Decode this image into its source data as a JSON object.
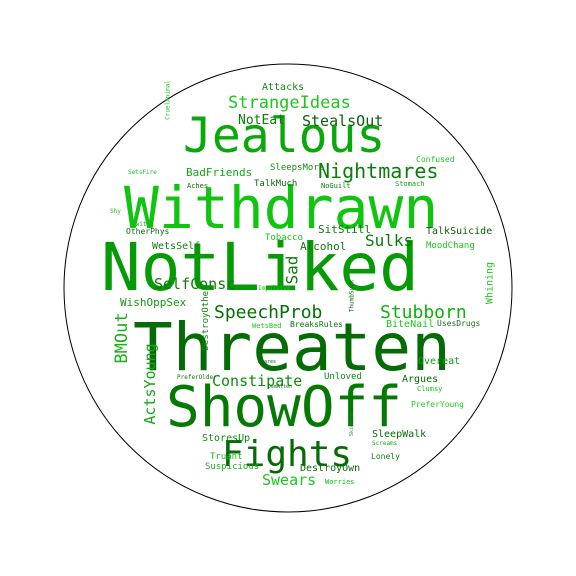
{
  "words": [
    {
      "text": "NotLiked",
      "color": "#079a07"
    },
    {
      "text": "Threaten",
      "color": "#056b05"
    },
    {
      "text": "Withdrawn",
      "color": "#10c410"
    },
    {
      "text": "ShowOff",
      "color": "#047a04"
    },
    {
      "text": "Jealous",
      "color": "#0aa80a"
    },
    {
      "text": "Fights",
      "color": "#066a06"
    },
    {
      "text": "Nightmares",
      "color": "#0a7e0a"
    },
    {
      "text": "StrangeIdeas",
      "color": "#19c819"
    },
    {
      "text": "SpeechProb",
      "color": "#067006"
    },
    {
      "text": "Stubborn",
      "color": "#10b010"
    },
    {
      "text": "StealsOut",
      "color": "#0a600a"
    },
    {
      "text": "NotEat",
      "color": "#0a7d0a"
    },
    {
      "text": "BMOut",
      "color": "#17b317"
    },
    {
      "text": "ActsYoung",
      "color": "#12a812"
    },
    {
      "text": "SelfConsc",
      "color": "#0b7e0b"
    },
    {
      "text": "Constipate",
      "color": "#0d8e0d"
    },
    {
      "text": "Sulks",
      "color": "#0a7a0a"
    },
    {
      "text": "Sad",
      "color": "#0e7a0e"
    },
    {
      "text": "Swears",
      "color": "#1cc61c"
    },
    {
      "text": "BadFriends",
      "color": "#14a814"
    },
    {
      "text": "WishOppSex",
      "color": "#139713"
    },
    {
      "text": "Attacks",
      "color": "#0e8a0e"
    },
    {
      "text": "SleepsMore",
      "color": "#138b13"
    },
    {
      "text": "TalkSuicide",
      "color": "#0c5c0c"
    },
    {
      "text": "WetsSelf",
      "color": "#0f7f0f"
    },
    {
      "text": "Alcohol",
      "color": "#0c7a0c"
    },
    {
      "text": "SitStill",
      "color": "#0b7a0b"
    },
    {
      "text": "TalkMuch",
      "color": "#0a6a0a"
    },
    {
      "text": "Tobacco",
      "color": "#19c419"
    },
    {
      "text": "MoodChang",
      "color": "#18c818"
    },
    {
      "text": "Whining",
      "color": "#18c818"
    },
    {
      "text": "BiteNail",
      "color": "#1bc31b"
    },
    {
      "text": "UsesDrugs",
      "color": "#1a6a1a"
    },
    {
      "text": "Argues",
      "color": "#0a6a0a"
    },
    {
      "text": "Overeat",
      "color": "#109a10"
    },
    {
      "text": "PreferYoung",
      "color": "#1ccc1c"
    },
    {
      "text": "SleepWalk",
      "color": "#0a6a0a"
    },
    {
      "text": "StoresUp",
      "color": "#0e8e0e"
    },
    {
      "text": "Truant",
      "color": "#19c019"
    },
    {
      "text": "Suspicious",
      "color": "#18b018"
    },
    {
      "text": "DestroyOwn",
      "color": "#0a6a0a"
    },
    {
      "text": "Lonely",
      "color": "#0e7a0e"
    },
    {
      "text": "Worries",
      "color": "#16b816"
    },
    {
      "text": "Screams",
      "color": "#18b018"
    },
    {
      "text": "Clumsy",
      "color": "#1ac41a"
    },
    {
      "text": "Unloved",
      "color": "#0e8a0e"
    },
    {
      "text": "BreaksRules",
      "color": "#0a7a0a"
    },
    {
      "text": "WetsBed",
      "color": "#1cc81c"
    },
    {
      "text": "DestroyOther",
      "color": "#0e8a0e"
    },
    {
      "text": "Confused",
      "color": "#1cc41c"
    },
    {
      "text": "Stomach",
      "color": "#17a017"
    },
    {
      "text": "NoGuilt",
      "color": "#0f7a0f"
    },
    {
      "text": "Aches",
      "color": "#0c6a0c"
    },
    {
      "text": "OtherPhys",
      "color": "#0a6a0a"
    },
    {
      "text": "Twitch",
      "color": "#1aa81a"
    },
    {
      "text": "Shy",
      "color": "#1cc01c"
    },
    {
      "text": "SetsFire",
      "color": "#1cc41c"
    },
    {
      "text": "CruelAnimal",
      "color": "#1cc41c"
    },
    {
      "text": "Impulsive",
      "color": "#22c822"
    },
    {
      "text": "ThumbSuck",
      "color": "#0e6a0e"
    },
    {
      "text": "SkinProb",
      "color": "#1a8a1a"
    },
    {
      "text": "Stares",
      "color": "#1a5a1a"
    },
    {
      "text": "PreferOlder",
      "color": "#1a6a1a"
    },
    {
      "text": "DemAtten",
      "color": "#1a6a1a"
    }
  ],
  "colors": {
    "background": "#ffffff",
    "border": "#000000"
  }
}
